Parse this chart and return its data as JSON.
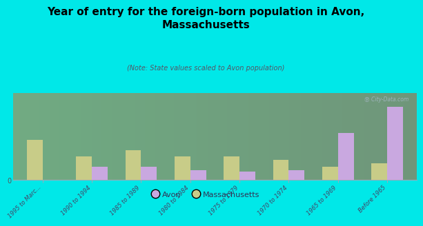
{
  "title": "Year of entry for the foreign-born population in Avon,\nMassachusetts",
  "subtitle": "(Note: State values scaled to Avon population)",
  "categories": [
    "1995 to Marc...",
    "1990 to 1994",
    "1985 to 1989",
    "1980 to 1984",
    "1975 to 1979",
    "1970 to 1974",
    "1965 to 1969",
    "Before 1965"
  ],
  "avon_values": [
    0,
    4,
    4,
    3,
    2.5,
    3,
    14,
    22
  ],
  "massachusetts_values": [
    12,
    7,
    9,
    7,
    7,
    6,
    4,
    5
  ],
  "avon_color": "#c9a8e0",
  "mass_color": "#c8cc88",
  "background_color": "#00e8e8",
  "bar_width": 0.32,
  "ylim": [
    0,
    26
  ],
  "watermark": "Ⓜ City-Data.com",
  "legend_avon": "Avon",
  "legend_mass": "Massachusetts"
}
